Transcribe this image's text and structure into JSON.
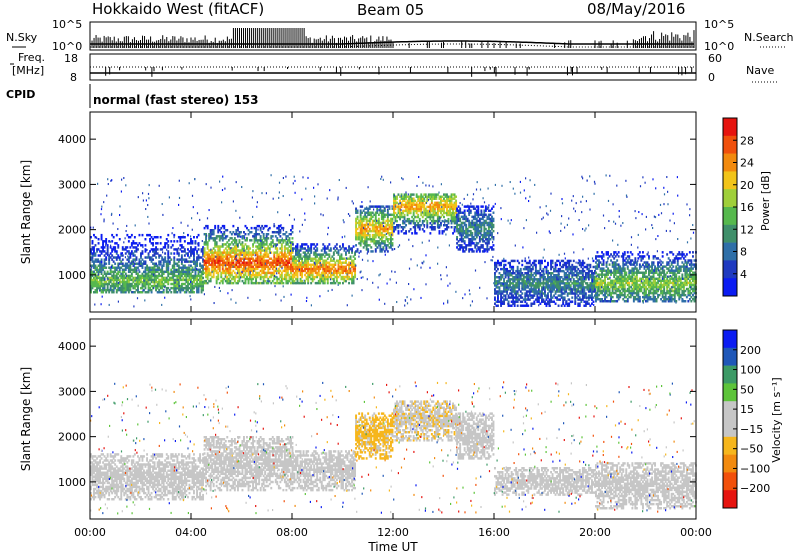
{
  "header": {
    "station": "Hokkaido West (fitACF)",
    "beam": "Beam 05",
    "date": "08/May/2016"
  },
  "top_panels": {
    "nsky_label": "N.Sky",
    "nsearch_label": "N.Search",
    "noise_ticks": [
      "10^5",
      "10^0"
    ],
    "freq_label": "Freq.",
    "freq_unit": "[MHz]",
    "freq_ticks": [
      "18",
      "8"
    ],
    "nave_label": "Nave",
    "nave_ticks": [
      "60",
      "0"
    ],
    "cpid_label": "CPID",
    "cpid_text": "normal (fast stereo) 153"
  },
  "colors": {
    "power": [
      "#0b1cf2",
      "#1f3ac0",
      "#2f6fa8",
      "#3f8f6a",
      "#56b84d",
      "#9fcf3a",
      "#f2c419",
      "#f28a0e",
      "#f0500c",
      "#e6140f"
    ],
    "velocity": [
      "#e6140f",
      "#f2500a",
      "#f28a0e",
      "#f6b61c",
      "#c6c6c6",
      "#c6c6c6",
      "#5dc43a",
      "#3c9a66",
      "#1f57b8",
      "#0b1cf2"
    ]
  },
  "chart_data": [
    {
      "type": "heatmap",
      "name": "power",
      "ylabel": "Slant Range [km]",
      "colorbar_label": "Power [dB]",
      "colorbar_ticks": [
        "28",
        "24",
        "20",
        "16",
        "12",
        "8",
        "4"
      ],
      "colorbar_range": [
        0,
        30
      ],
      "x_ticks": [
        "00:00",
        "04:00",
        "08:00",
        "12:00",
        "16:00",
        "20:00",
        "00:00"
      ],
      "xlim_hours": [
        0,
        24
      ],
      "y_ticks": [
        "1000",
        "2000",
        "3000",
        "4000"
      ],
      "ylim": [
        180,
        4600
      ],
      "echo_bands": [
        {
          "t0": 0.0,
          "t1": 4.5,
          "r0": 600,
          "r1": 1900,
          "peak_r": 850,
          "power": 14
        },
        {
          "t0": 4.5,
          "t1": 8.0,
          "r0": 800,
          "r1": 2100,
          "peak_r": 1250,
          "power": 26
        },
        {
          "t0": 8.0,
          "t1": 10.5,
          "r0": 800,
          "r1": 1700,
          "peak_r": 1100,
          "power": 24
        },
        {
          "t0": 10.5,
          "t1": 12.0,
          "r0": 1500,
          "r1": 2500,
          "peak_r": 2000,
          "power": 22
        },
        {
          "t0": 12.0,
          "t1": 14.5,
          "r0": 1900,
          "r1": 2800,
          "peak_r": 2500,
          "power": 22
        },
        {
          "t0": 14.5,
          "t1": 16.0,
          "r0": 1500,
          "r1": 2500,
          "peak_r": 2000,
          "power": 10
        },
        {
          "t0": 16.0,
          "t1": 20.0,
          "r0": 300,
          "r1": 1300,
          "peak_r": 800,
          "power": 10
        },
        {
          "t0": 20.0,
          "t1": 24.0,
          "r0": 400,
          "r1": 1500,
          "peak_r": 800,
          "power": 16
        }
      ]
    },
    {
      "type": "heatmap",
      "name": "velocity",
      "ylabel": "Slant Range [km]",
      "colorbar_label": "Velocity [m s⁻¹]",
      "colorbar_ticks": [
        "200",
        "100",
        "50",
        "15",
        "−15",
        "−50",
        "−100",
        "−200"
      ],
      "colorbar_range": [
        -250,
        250
      ],
      "x_ticks": [
        "00:00",
        "04:00",
        "08:00",
        "12:00",
        "16:00",
        "20:00",
        "00:00"
      ],
      "xlim_hours": [
        0,
        24
      ],
      "xlabel": "Time UT",
      "y_ticks": [
        "1000",
        "2000",
        "3000",
        "4000"
      ],
      "ylim": [
        180,
        4600
      ],
      "echo_bands": [
        {
          "t0": 0.0,
          "t1": 4.5,
          "r0": 600,
          "r1": 1600,
          "velocity": 0
        },
        {
          "t0": 4.5,
          "t1": 8.0,
          "r0": 800,
          "r1": 2000,
          "velocity": 30
        },
        {
          "t0": 8.0,
          "t1": 10.5,
          "r0": 800,
          "r1": 1700,
          "velocity": -20
        },
        {
          "t0": 10.5,
          "t1": 12.0,
          "r0": 1500,
          "r1": 2500,
          "velocity": -60
        },
        {
          "t0": 12.0,
          "t1": 14.5,
          "r0": 1900,
          "r1": 2800,
          "velocity": -40
        },
        {
          "t0": 14.5,
          "t1": 16.0,
          "r0": 1500,
          "r1": 2500,
          "velocity": 30
        },
        {
          "t0": 16.0,
          "t1": 20.0,
          "r0": 700,
          "r1": 1300,
          "velocity": 0
        },
        {
          "t0": 20.0,
          "t1": 24.0,
          "r0": 400,
          "r1": 1400,
          "velocity": 5
        }
      ]
    }
  ]
}
